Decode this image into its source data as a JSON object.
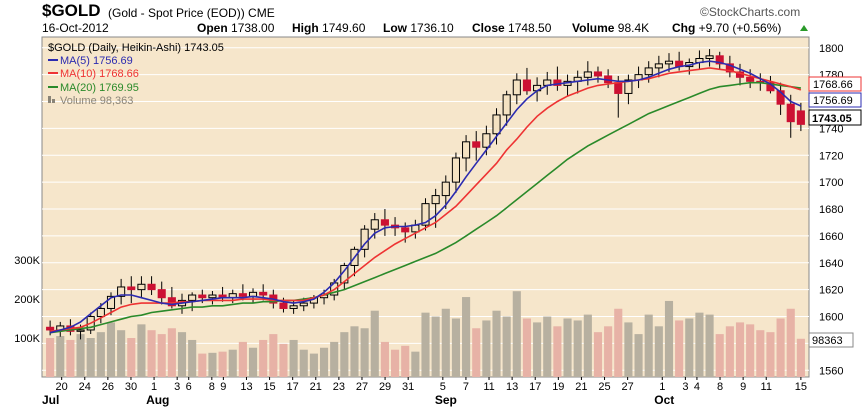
{
  "header": {
    "symbol": "$GOLD",
    "name": "(Gold - Spot Price (EOD))",
    "exchange": "CME",
    "date": "16-Oct-2012",
    "open_label": "Open",
    "open": "1738.00",
    "high_label": "High",
    "high": "1749.60",
    "low_label": "Low",
    "low": "1736.10",
    "close_label": "Close",
    "close": "1748.50",
    "volume_label": "Volume",
    "volume": "98.4K",
    "chg_label": "Chg",
    "chg": "+9.70 (+0.56%)",
    "brand": "©StockCharts.com"
  },
  "legend": {
    "main": "$GOLD (Daily, Heikin-Ashi) 1743.05",
    "ma5": "MA(5) 1756.69",
    "ma10": "MA(10) 1768.66",
    "ma20": "MA(20) 1769.95",
    "volume": "Volume 98,363"
  },
  "badges": {
    "ma10": "1768.66",
    "ma5": "1756.69",
    "close": "1743.05",
    "volume": "98363"
  },
  "colors": {
    "background": "#f6e6cb",
    "up_candle": "#f4e2c2",
    "down_candle": "#cc1133",
    "ma5": "#2b2bb0",
    "ma10": "#ee3333",
    "ma20": "#2a8a2a",
    "vol_up": "#b7b0a0",
    "vol_down": "#e7b2a6"
  },
  "chart_data": {
    "type": "candlestick",
    "title": "$GOLD (Daily, Heikin-Ashi) 1743.05",
    "ylim": [
      1555,
      1808
    ],
    "price_ticks": [
      "1560",
      "1580",
      "1600",
      "1620",
      "1640",
      "1660",
      "1680",
      "1700",
      "1720",
      "1740",
      "1760",
      "1780",
      "1800"
    ],
    "volume_ticks": [
      "100K",
      "200K",
      "300K"
    ],
    "x_tick_labels": [
      "20",
      "24",
      "26",
      "30",
      "1",
      "3",
      "6",
      "8",
      "9",
      "13",
      "15",
      "17",
      "21",
      "23",
      "27",
      "29",
      "31",
      "5",
      "7",
      "11",
      "13",
      "17",
      "19",
      "21",
      "25",
      "27",
      "1",
      "3",
      "4",
      "8",
      "9",
      "11",
      "15"
    ],
    "months": [
      "Jul",
      "Aug",
      "Sep",
      "Oct"
    ],
    "candles": [
      {
        "o": 1592,
        "h": 1597,
        "l": 1586,
        "c": 1590,
        "v": 100
      },
      {
        "o": 1590,
        "h": 1596,
        "l": 1585,
        "c": 1593,
        "v": 105
      },
      {
        "o": 1593,
        "h": 1598,
        "l": 1586,
        "c": 1589,
        "v": 95
      },
      {
        "o": 1589,
        "h": 1594,
        "l": 1583,
        "c": 1590,
        "v": 110
      },
      {
        "o": 1590,
        "h": 1603,
        "l": 1587,
        "c": 1600,
        "v": 100
      },
      {
        "o": 1600,
        "h": 1610,
        "l": 1595,
        "c": 1606,
        "v": 115
      },
      {
        "o": 1606,
        "h": 1618,
        "l": 1601,
        "c": 1615,
        "v": 140
      },
      {
        "o": 1615,
        "h": 1628,
        "l": 1609,
        "c": 1622,
        "v": 120
      },
      {
        "o": 1622,
        "h": 1630,
        "l": 1610,
        "c": 1620,
        "v": 100
      },
      {
        "o": 1620,
        "h": 1630,
        "l": 1614,
        "c": 1624,
        "v": 135
      },
      {
        "o": 1624,
        "h": 1630,
        "l": 1616,
        "c": 1620,
        "v": 120
      },
      {
        "o": 1620,
        "h": 1626,
        "l": 1609,
        "c": 1614,
        "v": 110
      },
      {
        "o": 1614,
        "h": 1622,
        "l": 1606,
        "c": 1608,
        "v": 125
      },
      {
        "o": 1608,
        "h": 1617,
        "l": 1602,
        "c": 1612,
        "v": 115
      },
      {
        "o": 1612,
        "h": 1618,
        "l": 1604,
        "c": 1616,
        "v": 95
      },
      {
        "o": 1616,
        "h": 1620,
        "l": 1610,
        "c": 1614,
        "v": 60
      },
      {
        "o": 1614,
        "h": 1619,
        "l": 1609,
        "c": 1616,
        "v": 62
      },
      {
        "o": 1616,
        "h": 1622,
        "l": 1611,
        "c": 1614,
        "v": 65
      },
      {
        "o": 1614,
        "h": 1620,
        "l": 1610,
        "c": 1617,
        "v": 70
      },
      {
        "o": 1617,
        "h": 1624,
        "l": 1612,
        "c": 1615,
        "v": 90
      },
      {
        "o": 1615,
        "h": 1621,
        "l": 1610,
        "c": 1618,
        "v": 75
      },
      {
        "o": 1618,
        "h": 1624,
        "l": 1612,
        "c": 1616,
        "v": 95
      },
      {
        "o": 1616,
        "h": 1620,
        "l": 1606,
        "c": 1610,
        "v": 110
      },
      {
        "o": 1610,
        "h": 1614,
        "l": 1603,
        "c": 1606,
        "v": 85
      },
      {
        "o": 1606,
        "h": 1612,
        "l": 1602,
        "c": 1608,
        "v": 95
      },
      {
        "o": 1608,
        "h": 1614,
        "l": 1604,
        "c": 1610,
        "v": 70
      },
      {
        "o": 1610,
        "h": 1616,
        "l": 1606,
        "c": 1614,
        "v": 60
      },
      {
        "o": 1614,
        "h": 1620,
        "l": 1609,
        "c": 1616,
        "v": 75
      },
      {
        "o": 1616,
        "h": 1628,
        "l": 1612,
        "c": 1625,
        "v": 90
      },
      {
        "o": 1625,
        "h": 1640,
        "l": 1620,
        "c": 1638,
        "v": 115
      },
      {
        "o": 1638,
        "h": 1652,
        "l": 1630,
        "c": 1650,
        "v": 130
      },
      {
        "o": 1650,
        "h": 1668,
        "l": 1644,
        "c": 1665,
        "v": 125
      },
      {
        "o": 1665,
        "h": 1677,
        "l": 1658,
        "c": 1672,
        "v": 170
      },
      {
        "o": 1672,
        "h": 1680,
        "l": 1660,
        "c": 1668,
        "v": 90
      },
      {
        "o": 1668,
        "h": 1674,
        "l": 1660,
        "c": 1666,
        "v": 70
      },
      {
        "o": 1666,
        "h": 1670,
        "l": 1655,
        "c": 1663,
        "v": 80
      },
      {
        "o": 1663,
        "h": 1672,
        "l": 1658,
        "c": 1668,
        "v": 65
      },
      {
        "o": 1668,
        "h": 1688,
        "l": 1664,
        "c": 1684,
        "v": 165
      },
      {
        "o": 1684,
        "h": 1695,
        "l": 1666,
        "c": 1690,
        "v": 155
      },
      {
        "o": 1690,
        "h": 1705,
        "l": 1680,
        "c": 1700,
        "v": 175
      },
      {
        "o": 1700,
        "h": 1722,
        "l": 1692,
        "c": 1718,
        "v": 150
      },
      {
        "o": 1718,
        "h": 1735,
        "l": 1708,
        "c": 1730,
        "v": 205
      },
      {
        "o": 1730,
        "h": 1738,
        "l": 1716,
        "c": 1726,
        "v": 125
      },
      {
        "o": 1726,
        "h": 1742,
        "l": 1720,
        "c": 1736,
        "v": 145
      },
      {
        "o": 1736,
        "h": 1755,
        "l": 1728,
        "c": 1750,
        "v": 170
      },
      {
        "o": 1750,
        "h": 1768,
        "l": 1742,
        "c": 1765,
        "v": 155
      },
      {
        "o": 1765,
        "h": 1781,
        "l": 1758,
        "c": 1776,
        "v": 220
      },
      {
        "o": 1776,
        "h": 1785,
        "l": 1765,
        "c": 1768,
        "v": 150
      },
      {
        "o": 1768,
        "h": 1778,
        "l": 1760,
        "c": 1772,
        "v": 140
      },
      {
        "o": 1772,
        "h": 1782,
        "l": 1765,
        "c": 1776,
        "v": 155
      },
      {
        "o": 1776,
        "h": 1786,
        "l": 1768,
        "c": 1772,
        "v": 130
      },
      {
        "o": 1772,
        "h": 1780,
        "l": 1764,
        "c": 1775,
        "v": 150
      },
      {
        "o": 1775,
        "h": 1783,
        "l": 1766,
        "c": 1778,
        "v": 145
      },
      {
        "o": 1778,
        "h": 1790,
        "l": 1772,
        "c": 1782,
        "v": 160
      },
      {
        "o": 1782,
        "h": 1786,
        "l": 1774,
        "c": 1779,
        "v": 115
      },
      {
        "o": 1779,
        "h": 1784,
        "l": 1770,
        "c": 1774,
        "v": 130
      },
      {
        "o": 1774,
        "h": 1779,
        "l": 1748,
        "c": 1766,
        "v": 175
      },
      {
        "o": 1766,
        "h": 1780,
        "l": 1758,
        "c": 1776,
        "v": 140
      },
      {
        "o": 1776,
        "h": 1786,
        "l": 1770,
        "c": 1780,
        "v": 110
      },
      {
        "o": 1780,
        "h": 1790,
        "l": 1774,
        "c": 1785,
        "v": 160
      },
      {
        "o": 1785,
        "h": 1794,
        "l": 1778,
        "c": 1788,
        "v": 130
      },
      {
        "o": 1788,
        "h": 1796,
        "l": 1782,
        "c": 1790,
        "v": 195
      },
      {
        "o": 1790,
        "h": 1797,
        "l": 1783,
        "c": 1786,
        "v": 145
      },
      {
        "o": 1786,
        "h": 1792,
        "l": 1780,
        "c": 1789,
        "v": 150
      },
      {
        "o": 1789,
        "h": 1798,
        "l": 1784,
        "c": 1792,
        "v": 165
      },
      {
        "o": 1792,
        "h": 1799,
        "l": 1786,
        "c": 1794,
        "v": 160
      },
      {
        "o": 1794,
        "h": 1797,
        "l": 1784,
        "c": 1788,
        "v": 110
      },
      {
        "o": 1788,
        "h": 1794,
        "l": 1778,
        "c": 1782,
        "v": 130
      },
      {
        "o": 1782,
        "h": 1788,
        "l": 1772,
        "c": 1778,
        "v": 140
      },
      {
        "o": 1778,
        "h": 1784,
        "l": 1770,
        "c": 1775,
        "v": 135
      },
      {
        "o": 1775,
        "h": 1781,
        "l": 1768,
        "c": 1774,
        "v": 120
      },
      {
        "o": 1774,
        "h": 1779,
        "l": 1766,
        "c": 1768,
        "v": 115
      },
      {
        "o": 1768,
        "h": 1774,
        "l": 1750,
        "c": 1758,
        "v": 150
      },
      {
        "o": 1758,
        "h": 1765,
        "l": 1733,
        "c": 1745,
        "v": 175
      },
      {
        "o": 1753,
        "h": 1759,
        "l": 1738,
        "c": 1743,
        "v": 98
      }
    ],
    "ma5": [
      1588,
      1590,
      1592,
      1596,
      1602,
      1608,
      1614,
      1616,
      1616,
      1614,
      1612,
      1610,
      1609,
      1610,
      1611,
      1612,
      1613,
      1614,
      1614,
      1614,
      1615,
      1614,
      1613,
      1611,
      1610,
      1611,
      1613,
      1618,
      1625,
      1634,
      1644,
      1654,
      1662,
      1666,
      1667,
      1667,
      1668,
      1670,
      1675,
      1683,
      1693,
      1704,
      1714,
      1724,
      1734,
      1744,
      1754,
      1762,
      1768,
      1772,
      1773,
      1774,
      1775,
      1776,
      1777,
      1776,
      1775,
      1775,
      1776,
      1778,
      1781,
      1784,
      1786,
      1787,
      1789,
      1790,
      1789,
      1787,
      1784,
      1781,
      1777,
      1773,
      1767,
      1760,
      1756.69
    ],
    "ma10": [
      1589,
      1590,
      1591,
      1592,
      1595,
      1599,
      1603,
      1607,
      1609,
      1610,
      1610,
      1610,
      1610,
      1611,
      1611,
      1612,
      1612,
      1612,
      1612,
      1613,
      1613,
      1613,
      1612,
      1612,
      1612,
      1612,
      1614,
      1616,
      1620,
      1626,
      1632,
      1638,
      1644,
      1649,
      1654,
      1658,
      1662,
      1666,
      1670,
      1676,
      1682,
      1690,
      1698,
      1706,
      1714,
      1724,
      1732,
      1741,
      1749,
      1755,
      1760,
      1764,
      1767,
      1770,
      1772,
      1773,
      1774,
      1775,
      1776,
      1777,
      1779,
      1781,
      1782,
      1783,
      1784,
      1785,
      1784,
      1783,
      1781,
      1779,
      1777,
      1775,
      1773,
      1771,
      1768.66
    ],
    "ma20": [
      1588,
      1589,
      1590,
      1591,
      1592,
      1594,
      1596,
      1598,
      1600,
      1601,
      1603,
      1604,
      1605,
      1606,
      1607,
      1607,
      1608,
      1608,
      1609,
      1610,
      1610,
      1611,
      1611,
      1612,
      1612,
      1613,
      1614,
      1616,
      1618,
      1620,
      1623,
      1626,
      1629,
      1632,
      1635,
      1638,
      1641,
      1644,
      1647,
      1651,
      1655,
      1660,
      1665,
      1670,
      1675,
      1681,
      1687,
      1693,
      1699,
      1705,
      1711,
      1717,
      1722,
      1727,
      1731,
      1735,
      1739,
      1743,
      1747,
      1751,
      1754,
      1757,
      1760,
      1763,
      1766,
      1769,
      1771,
      1772,
      1773,
      1774,
      1774,
      1773,
      1772,
      1771,
      1769.95
    ]
  }
}
